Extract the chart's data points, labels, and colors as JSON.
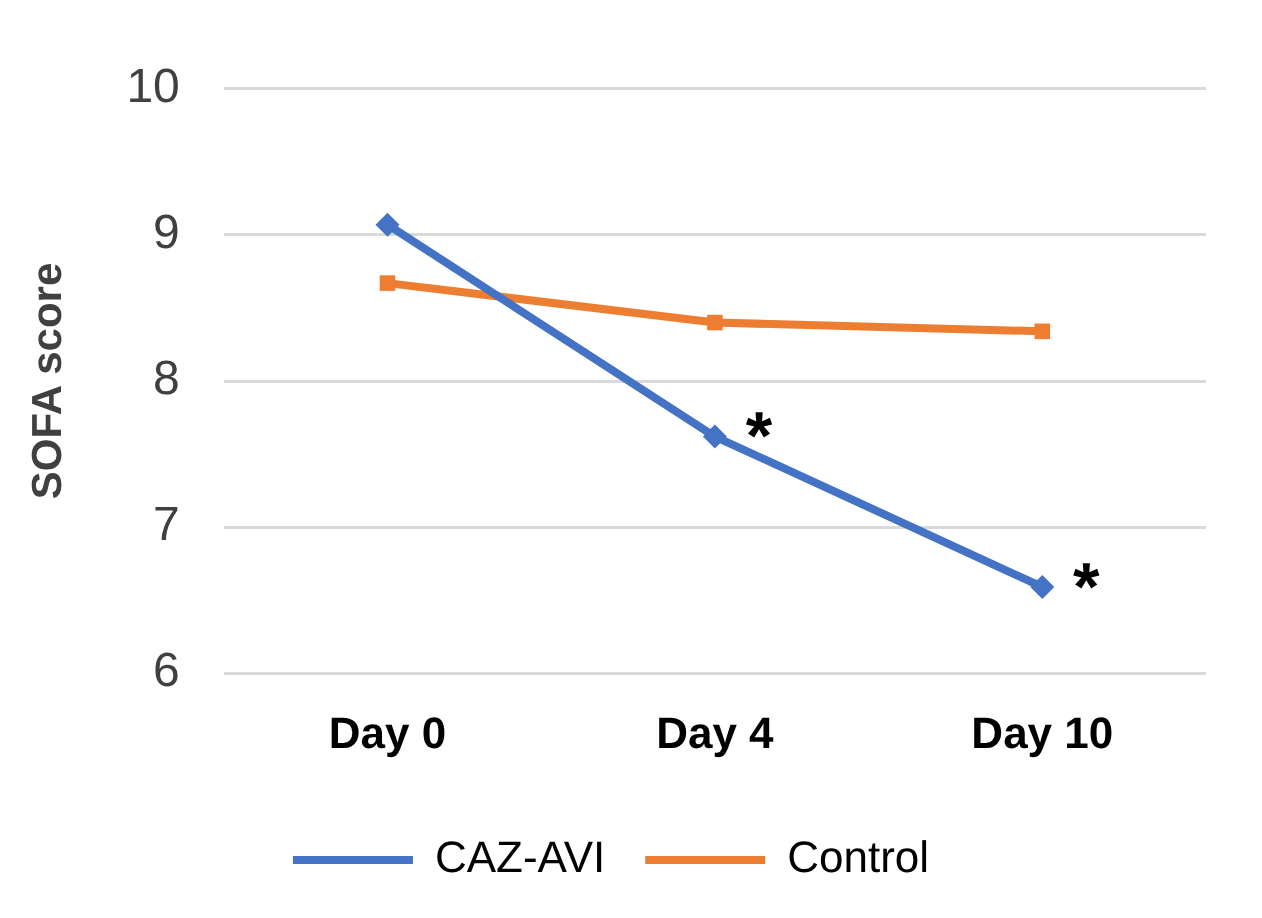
{
  "chart_data": {
    "type": "line",
    "ylabel": "SOFA score",
    "categories": [
      "Day 0",
      "Day 4",
      "Day 10"
    ],
    "series": [
      {
        "name": "CAZ-AVI",
        "color": "#4472c4",
        "values": [
          9.07,
          7.62,
          6.59
        ],
        "marker": "diamond"
      },
      {
        "name": "Control",
        "color": "#ed7d31",
        "values": [
          8.67,
          8.4,
          8.34
        ],
        "marker": "square"
      }
    ],
    "ylim": [
      6,
      10
    ],
    "yticks": [
      6,
      7,
      8,
      9,
      10
    ],
    "grid": "y",
    "legend": "bottom",
    "line_style": "solid",
    "annotations": [
      {
        "text": "*",
        "x": "Day 4",
        "y": 7.62
      },
      {
        "text": "*",
        "x": "Day 10",
        "y": 6.59
      }
    ]
  }
}
